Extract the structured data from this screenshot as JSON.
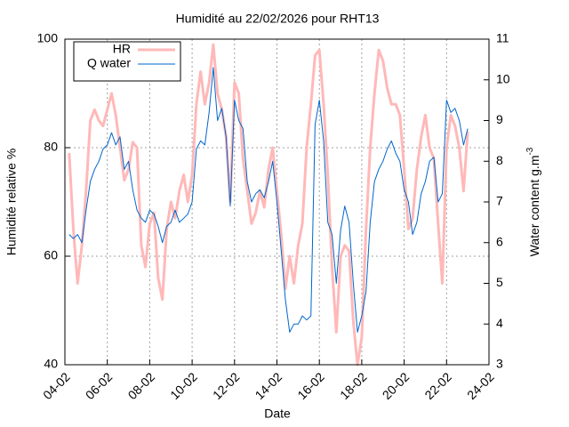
{
  "chart_data": {
    "type": "line",
    "title": "Humidité au 22/02/2026 pour RHT13",
    "x_label": "Date",
    "y_label": "Humidité relative %",
    "y2_label": "Water content g.m",
    "y2_label_sup": "-3",
    "xlim": [
      4,
      24
    ],
    "xticks": [
      {
        "value": 4,
        "label": "04-02"
      },
      {
        "value": 6,
        "label": "06-02"
      },
      {
        "value": 8,
        "label": "08-02"
      },
      {
        "value": 10,
        "label": "10-02"
      },
      {
        "value": 12,
        "label": "12-02"
      },
      {
        "value": 14,
        "label": "14-02"
      },
      {
        "value": 16,
        "label": "16-02"
      },
      {
        "value": 18,
        "label": "18-02"
      },
      {
        "value": 20,
        "label": "20-02"
      },
      {
        "value": 22,
        "label": "22-02"
      },
      {
        "value": 24,
        "label": "24-02"
      }
    ],
    "ylim": [
      40,
      100
    ],
    "yticks": [
      40,
      60,
      80,
      100
    ],
    "y2lim": [
      3,
      11
    ],
    "y2ticks": [
      3,
      4,
      5,
      6,
      7,
      8,
      9,
      10,
      11
    ],
    "grid": true,
    "legend": "upper left",
    "x": [
      4.2,
      4.4,
      4.6,
      4.8,
      5.0,
      5.2,
      5.4,
      5.6,
      5.8,
      6.0,
      6.2,
      6.4,
      6.6,
      6.8,
      7.0,
      7.2,
      7.4,
      7.6,
      7.8,
      8.0,
      8.2,
      8.4,
      8.6,
      8.8,
      9.0,
      9.2,
      9.4,
      9.6,
      9.8,
      10.0,
      10.2,
      10.4,
      10.6,
      10.8,
      11.0,
      11.2,
      11.4,
      11.6,
      11.8,
      12.0,
      12.2,
      12.4,
      12.6,
      12.8,
      13.0,
      13.2,
      13.4,
      13.6,
      13.8,
      14.0,
      14.2,
      14.4,
      14.6,
      14.8,
      15.0,
      15.2,
      15.4,
      15.6,
      15.8,
      16.0,
      16.2,
      16.4,
      16.6,
      16.8,
      17.0,
      17.2,
      17.4,
      17.6,
      17.8,
      18.0,
      18.2,
      18.4,
      18.6,
      18.8,
      19.0,
      19.2,
      19.4,
      19.6,
      19.8,
      20.0,
      20.2,
      20.4,
      20.6,
      20.8,
      21.0,
      21.2,
      21.4,
      21.6,
      21.8,
      22.0,
      22.2,
      22.4,
      22.6,
      22.8,
      23.0
    ],
    "series": [
      {
        "name": "HR",
        "color": "#ffb8b8",
        "width": 3,
        "values": [
          79,
          65,
          55,
          62,
          72,
          85,
          87,
          85,
          84,
          87,
          90,
          86,
          80,
          74,
          76,
          81,
          80,
          62,
          58,
          66,
          68,
          56,
          52,
          65,
          70,
          67,
          72,
          75,
          70,
          75,
          88,
          94,
          88,
          92,
          99,
          90,
          87,
          82,
          70,
          92,
          90,
          78,
          72,
          66,
          68,
          72,
          69,
          76,
          80,
          72,
          64,
          54,
          60,
          55,
          62,
          66,
          80,
          88,
          97,
          98,
          88,
          75,
          58,
          46,
          60,
          62,
          61,
          48,
          40,
          45,
          65,
          80,
          90,
          98,
          96,
          91,
          88,
          88,
          86,
          76,
          65,
          67,
          76,
          82,
          86,
          80,
          78,
          66,
          55,
          80,
          86,
          84,
          80,
          72,
          83
        ]
      },
      {
        "name": "Q water",
        "color": "#0066cc",
        "width": 1,
        "axis": "y2",
        "values": [
          6.2,
          6.1,
          6.2,
          6.0,
          6.8,
          7.5,
          7.8,
          8.0,
          8.3,
          8.4,
          8.7,
          8.4,
          8.6,
          7.8,
          8.0,
          7.3,
          6.8,
          6.6,
          6.5,
          6.8,
          6.7,
          6.4,
          6.0,
          6.4,
          6.5,
          6.8,
          6.5,
          6.6,
          6.7,
          7.0,
          8.3,
          8.5,
          8.4,
          9.2,
          10.3,
          9.0,
          9.3,
          8.6,
          6.9,
          9.5,
          9.0,
          8.8,
          7.5,
          7.0,
          7.2,
          7.3,
          7.1,
          7.5,
          8.0,
          7.0,
          5.8,
          4.6,
          3.8,
          4.0,
          4.0,
          4.2,
          4.1,
          4.2,
          8.9,
          9.5,
          8.5,
          6.5,
          6.2,
          5.0,
          6.3,
          6.9,
          6.5,
          5.0,
          3.8,
          4.2,
          4.8,
          6.5,
          7.5,
          7.8,
          8.0,
          8.3,
          8.5,
          8.2,
          8.0,
          7.3,
          7.0,
          6.2,
          6.5,
          7.2,
          7.5,
          8.0,
          8.1,
          7.0,
          7.2,
          9.5,
          9.2,
          9.3,
          9.0,
          8.4,
          8.8
        ]
      }
    ]
  }
}
